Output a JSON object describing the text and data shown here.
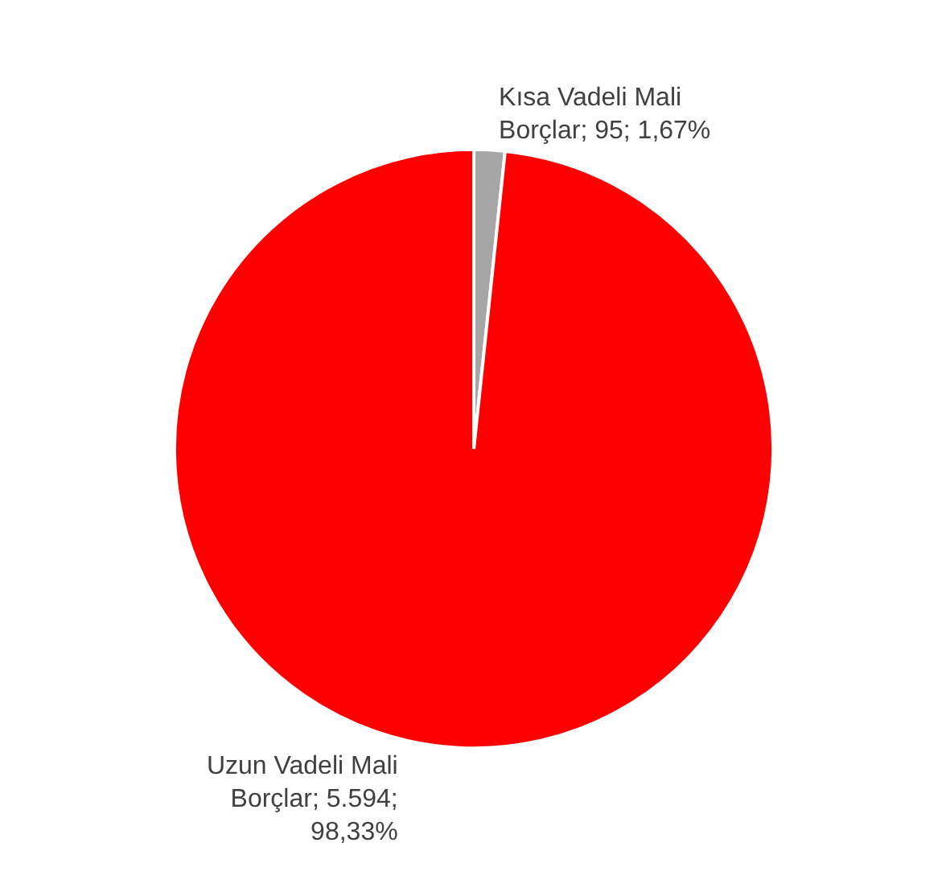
{
  "chart_data": {
    "type": "pie",
    "categories": [
      "Kısa Vadeli Mali Borçlar",
      "Uzun Vadeli Mali Borçlar"
    ],
    "values": [
      95,
      5594
    ],
    "colors": [
      "#a6a6a6",
      "#ff0000"
    ],
    "value_labels": [
      "95; 1,67%",
      "5.594; 98,33%"
    ],
    "legend": false
  }
}
